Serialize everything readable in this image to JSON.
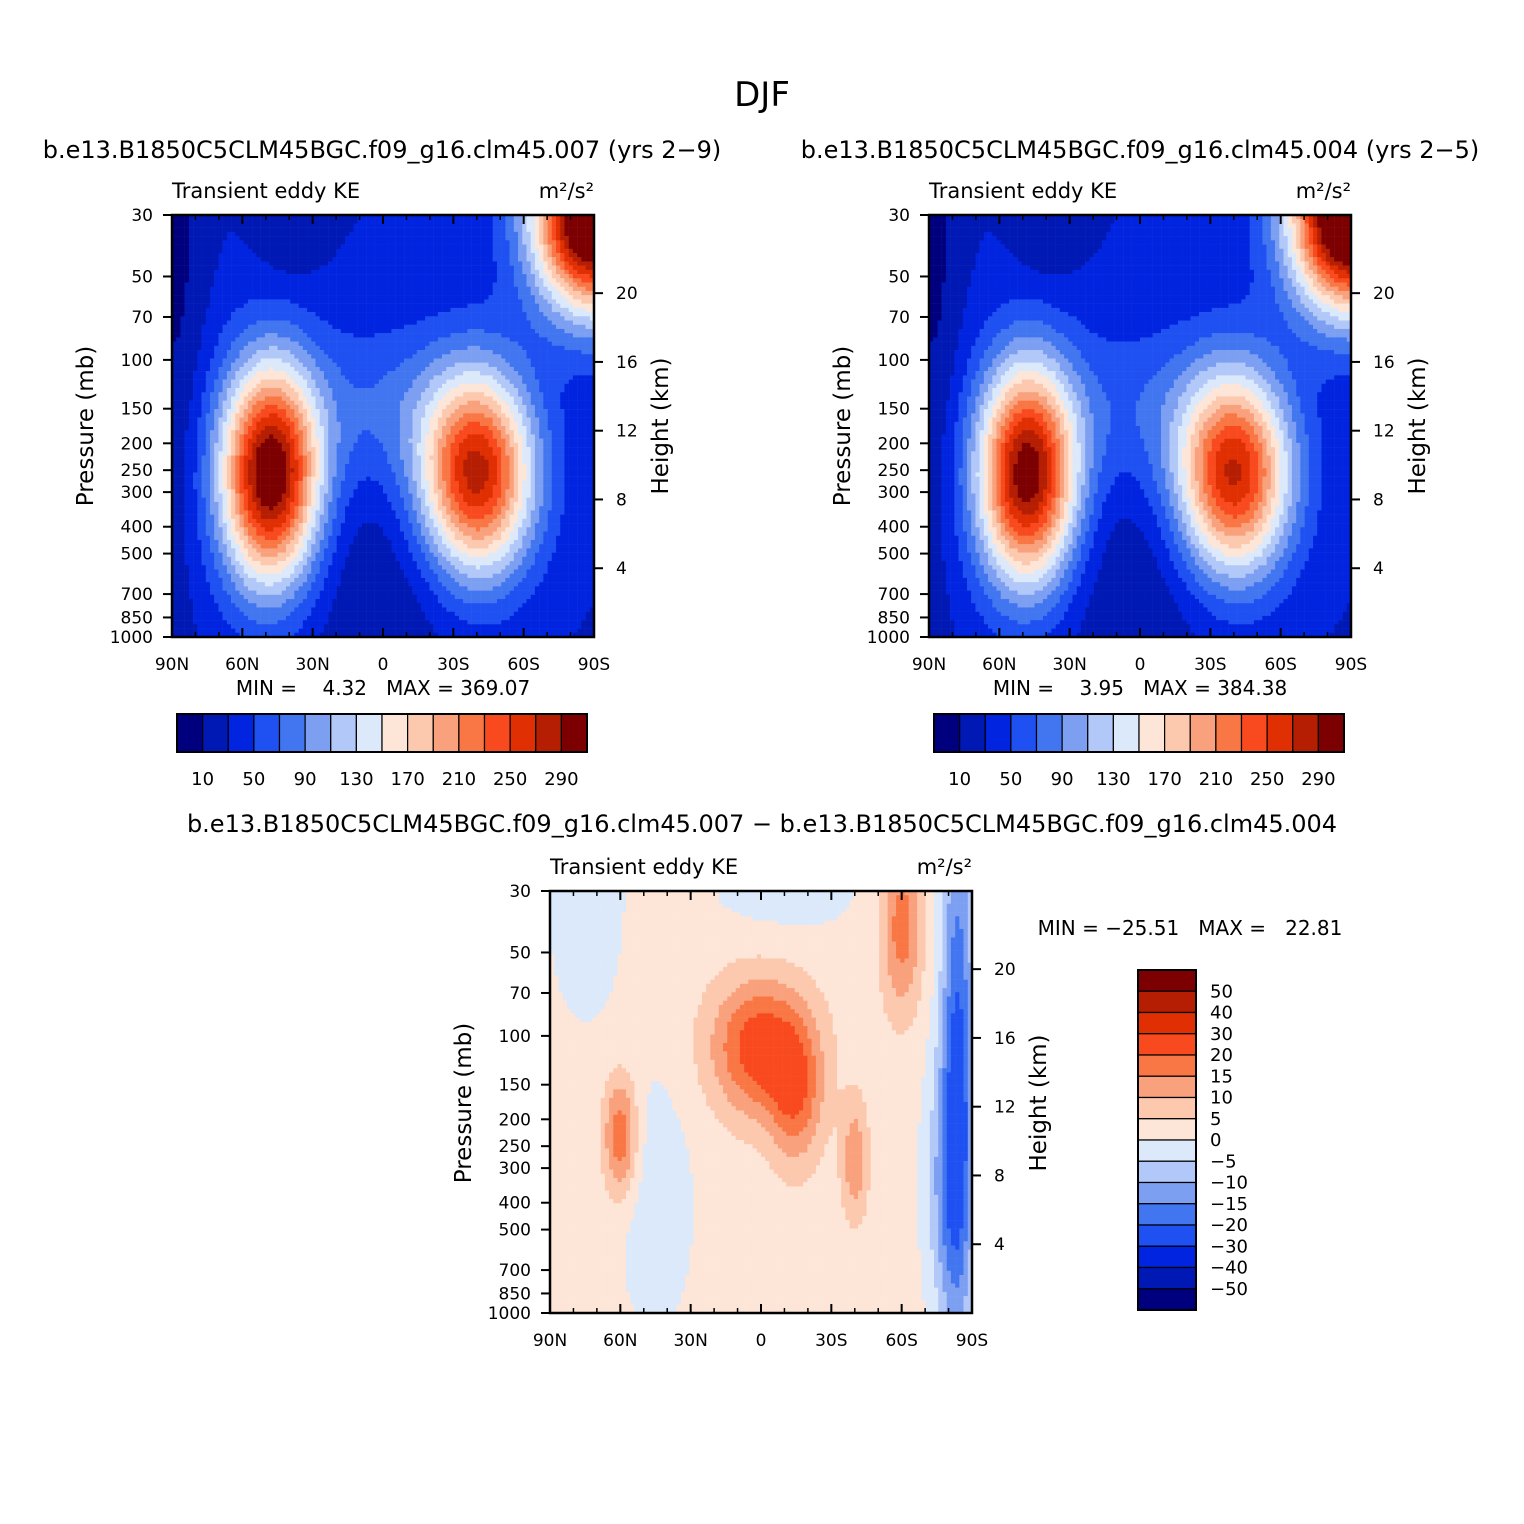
{
  "figure_title": "DJF",
  "chart_data": [
    {
      "type": "heatmap",
      "title": "b.e13.B1850C5CLM45BGC.f09_g16.clm45.007 (yrs 2−9)",
      "left_label": "Transient eddy KE",
      "units": "m²/s²",
      "xlabel": "",
      "ylabel": "Pressure (mb)",
      "y2label": "Height (km)",
      "x_ticks": [
        "90N",
        "60N",
        "30N",
        "0",
        "30S",
        "60S",
        "90S"
      ],
      "y_ticks": [
        "30",
        "50",
        "70",
        "100",
        "150",
        "200",
        "250",
        "300",
        "400",
        "500",
        "700",
        "850",
        "1000"
      ],
      "y2_ticks": [
        "20",
        "16",
        "12",
        "8",
        "4"
      ],
      "stats": "MIN =    4.32   MAX = 369.07",
      "min": 4.32,
      "max": 369.07,
      "colorbar_labels": [
        "10",
        "50",
        "90",
        "130",
        "170",
        "210",
        "250",
        "290"
      ],
      "levels": [
        10,
        30,
        50,
        70,
        90,
        110,
        130,
        150,
        170,
        190,
        210,
        230,
        250,
        270,
        290
      ],
      "field": {
        "background": 30,
        "features": [
          {
            "lat": -90,
            "p": 30,
            "amp": 340,
            "slat": 18,
            "sz": 0.55
          },
          {
            "lat": -40,
            "p": 260,
            "amp": 250,
            "slat": 17,
            "sz": 0.6
          },
          {
            "lat": 48,
            "p": 260,
            "amp": 290,
            "slat": 15,
            "sz": 0.65
          },
          {
            "lat": 0,
            "p": 150,
            "amp": 40,
            "slat": 25,
            "sz": 0.5
          },
          {
            "lat": 0,
            "p": 600,
            "amp": -20,
            "slat": 35,
            "sz": 0.8
          },
          {
            "lat": 40,
            "p": 30,
            "amp": -20,
            "slat": 10,
            "sz": 0.4
          },
          {
            "lat": 88,
            "p": 30,
            "amp": -25,
            "slat": 8,
            "sz": 2
          }
        ]
      }
    },
    {
      "type": "heatmap",
      "title": "b.e13.B1850C5CLM45BGC.f09_g16.clm45.004 (yrs 2−5)",
      "left_label": "Transient eddy KE",
      "units": "m²/s²",
      "xlabel": "",
      "ylabel": "Pressure (mb)",
      "y2label": "Height (km)",
      "x_ticks": [
        "90N",
        "60N",
        "30N",
        "0",
        "30S",
        "60S",
        "90S"
      ],
      "y_ticks": [
        "30",
        "50",
        "70",
        "100",
        "150",
        "200",
        "250",
        "300",
        "400",
        "500",
        "700",
        "850",
        "1000"
      ],
      "y2_ticks": [
        "20",
        "16",
        "12",
        "8",
        "4"
      ],
      "stats": "MIN =    3.95   MAX = 384.38",
      "min": 3.95,
      "max": 384.38,
      "colorbar_labels": [
        "10",
        "50",
        "90",
        "130",
        "170",
        "210",
        "250",
        "290"
      ],
      "levels": [
        10,
        30,
        50,
        70,
        90,
        110,
        130,
        150,
        170,
        190,
        210,
        230,
        250,
        270,
        290
      ],
      "field": {
        "background": 30,
        "features": [
          {
            "lat": -90,
            "p": 30,
            "amp": 350,
            "slat": 18,
            "sz": 0.55
          },
          {
            "lat": -40,
            "p": 260,
            "amp": 245,
            "slat": 17,
            "sz": 0.6
          },
          {
            "lat": 48,
            "p": 260,
            "amp": 280,
            "slat": 15,
            "sz": 0.65
          },
          {
            "lat": 0,
            "p": 150,
            "amp": 35,
            "slat": 25,
            "sz": 0.5
          },
          {
            "lat": 0,
            "p": 600,
            "amp": -20,
            "slat": 35,
            "sz": 0.8
          },
          {
            "lat": 40,
            "p": 30,
            "amp": -20,
            "slat": 10,
            "sz": 0.4
          },
          {
            "lat": 88,
            "p": 30,
            "amp": -25,
            "slat": 8,
            "sz": 2
          }
        ]
      }
    },
    {
      "type": "heatmap",
      "title": "b.e13.B1850C5CLM45BGC.f09_g16.clm45.007 − b.e13.B1850C5CLM45BGC.f09_g16.clm45.004",
      "left_label": "Transient eddy KE",
      "units": "m²/s²",
      "xlabel": "",
      "ylabel": "Pressure (mb)",
      "y2label": "Height (km)",
      "x_ticks": [
        "90N",
        "60N",
        "30N",
        "0",
        "30S",
        "60S",
        "90S"
      ],
      "y_ticks": [
        "30",
        "50",
        "70",
        "100",
        "150",
        "200",
        "250",
        "300",
        "400",
        "500",
        "700",
        "850",
        "1000"
      ],
      "y2_ticks": [
        "20",
        "16",
        "12",
        "8",
        "4"
      ],
      "stats": "MIN = −25.51   MAX =   22.81",
      "min": -25.51,
      "max": 22.81,
      "colorbar_labels": [
        "50",
        "40",
        "30",
        "20",
        "15",
        "10",
        "5",
        "0",
        "−5",
        "−10",
        "−15",
        "−20",
        "−30",
        "−40",
        "−50"
      ],
      "levels": [
        -50,
        -40,
        -30,
        -20,
        -15,
        -10,
        -5,
        0,
        5,
        10,
        15,
        20,
        30,
        40,
        50
      ],
      "field": {
        "background": 2,
        "features": [
          {
            "lat": -84,
            "p": 120,
            "amp": -22,
            "slat": 5,
            "sz": 1.6
          },
          {
            "lat": -80,
            "p": 350,
            "amp": -12,
            "slat": 7,
            "sz": 0.8
          },
          {
            "lat": -60,
            "p": 40,
            "amp": 16,
            "slat": 6,
            "sz": 0.5
          },
          {
            "lat": 0,
            "p": 110,
            "amp": 22,
            "slat": 15,
            "sz": 0.4
          },
          {
            "lat": -15,
            "p": 170,
            "amp": 14,
            "slat": 8,
            "sz": 0.4
          },
          {
            "lat": 60,
            "p": 230,
            "amp": 18,
            "slat": 5,
            "sz": 0.35
          },
          {
            "lat": -40,
            "p": 280,
            "amp": 12,
            "slat": 4,
            "sz": 0.35
          },
          {
            "lat": 45,
            "p": 400,
            "amp": -5,
            "slat": 12,
            "sz": 0.8
          },
          {
            "lat": 75,
            "p": 30,
            "amp": -5,
            "slat": 12,
            "sz": 0.8
          },
          {
            "lat": -10,
            "p": 30,
            "amp": -4,
            "slat": 25,
            "sz": 0.3
          }
        ]
      }
    }
  ],
  "colors": {
    "te_palette": [
      "#00007e",
      "#0018b4",
      "#0024e0",
      "#1e50f2",
      "#4276f0",
      "#7d9ff2",
      "#b1c8f8",
      "#dbe9fb",
      "#fde6d8",
      "#fcc8ae",
      "#f9a17c",
      "#f97745",
      "#f84a1e",
      "#e02f02",
      "#b51e02",
      "#7c0001"
    ],
    "diff_palette": [
      "#00007e",
      "#0018b4",
      "#0024e0",
      "#1e50f2",
      "#4276f0",
      "#7d9ff2",
      "#b1c8f8",
      "#dbe9fb",
      "#fde6d8",
      "#fcc8ae",
      "#f9a17c",
      "#f97745",
      "#f84a1e",
      "#e02f02",
      "#b51e02",
      "#7c0001"
    ]
  }
}
